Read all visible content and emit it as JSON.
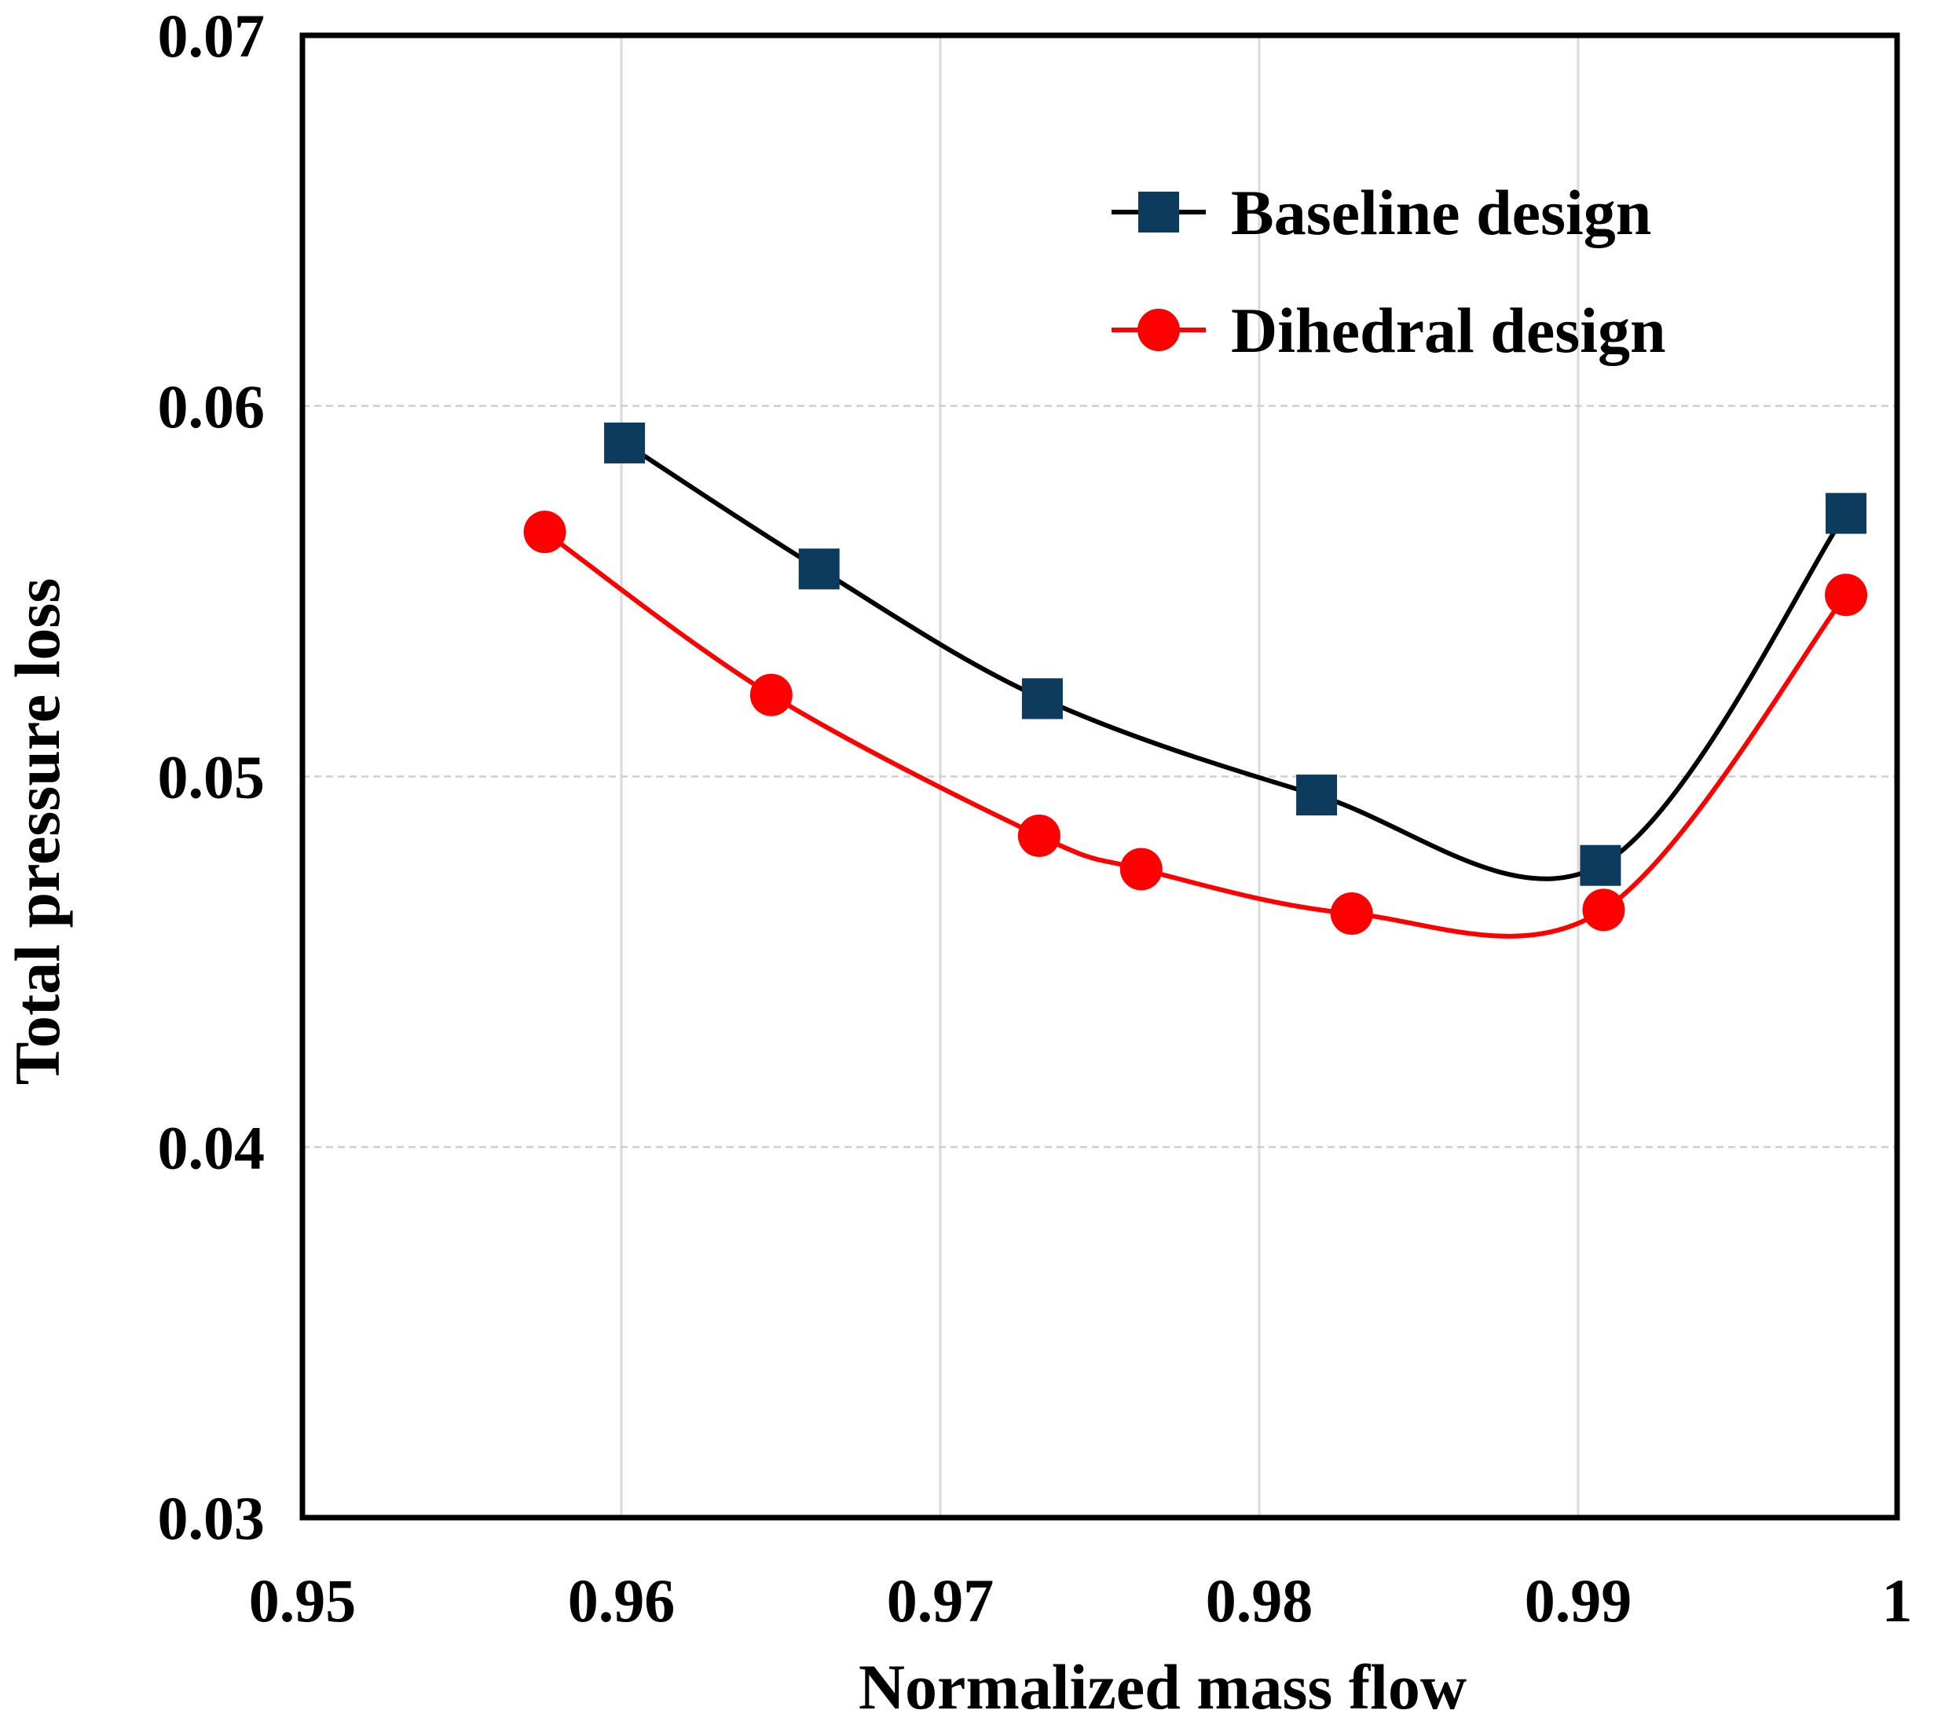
{
  "chart_data": {
    "type": "line",
    "title": "",
    "xlabel": "Normalized mass flow",
    "ylabel": "Total pressure loss",
    "xlim": [
      0.95,
      1.0
    ],
    "ylim": [
      0.03,
      0.07
    ],
    "xticks": [
      0.95,
      0.96,
      0.97,
      0.98,
      0.99,
      1.0
    ],
    "yticks": [
      0.03,
      0.04,
      0.05,
      0.06,
      0.07
    ],
    "xtick_labels": [
      "0.95",
      "0.96",
      "0.97",
      "0.98",
      "0.99",
      "1"
    ],
    "ytick_labels": [
      "0.03",
      "0.04",
      "0.05",
      "0.06",
      "0.07"
    ],
    "grid": true,
    "legend_position": "top-right",
    "series": [
      {
        "name": "Baseline design",
        "marker": "square",
        "line_color": "#000000",
        "marker_color": "#0d3b5e",
        "x": [
          0.9601,
          0.9662,
          0.9732,
          0.9818,
          0.9907,
          0.9984
        ],
        "y": [
          0.059,
          0.0556,
          0.0521,
          0.0495,
          0.0476,
          0.0571
        ]
      },
      {
        "name": "Dihedral design",
        "marker": "circle",
        "line_color": "#ff0000",
        "marker_color": "#ff0000",
        "x": [
          0.9576,
          0.9647,
          0.9731,
          0.9763,
          0.9829,
          0.9908,
          0.9984
        ],
        "y": [
          0.0566,
          0.0522,
          0.0484,
          0.0475,
          0.0463,
          0.0464,
          0.0549
        ]
      }
    ]
  }
}
